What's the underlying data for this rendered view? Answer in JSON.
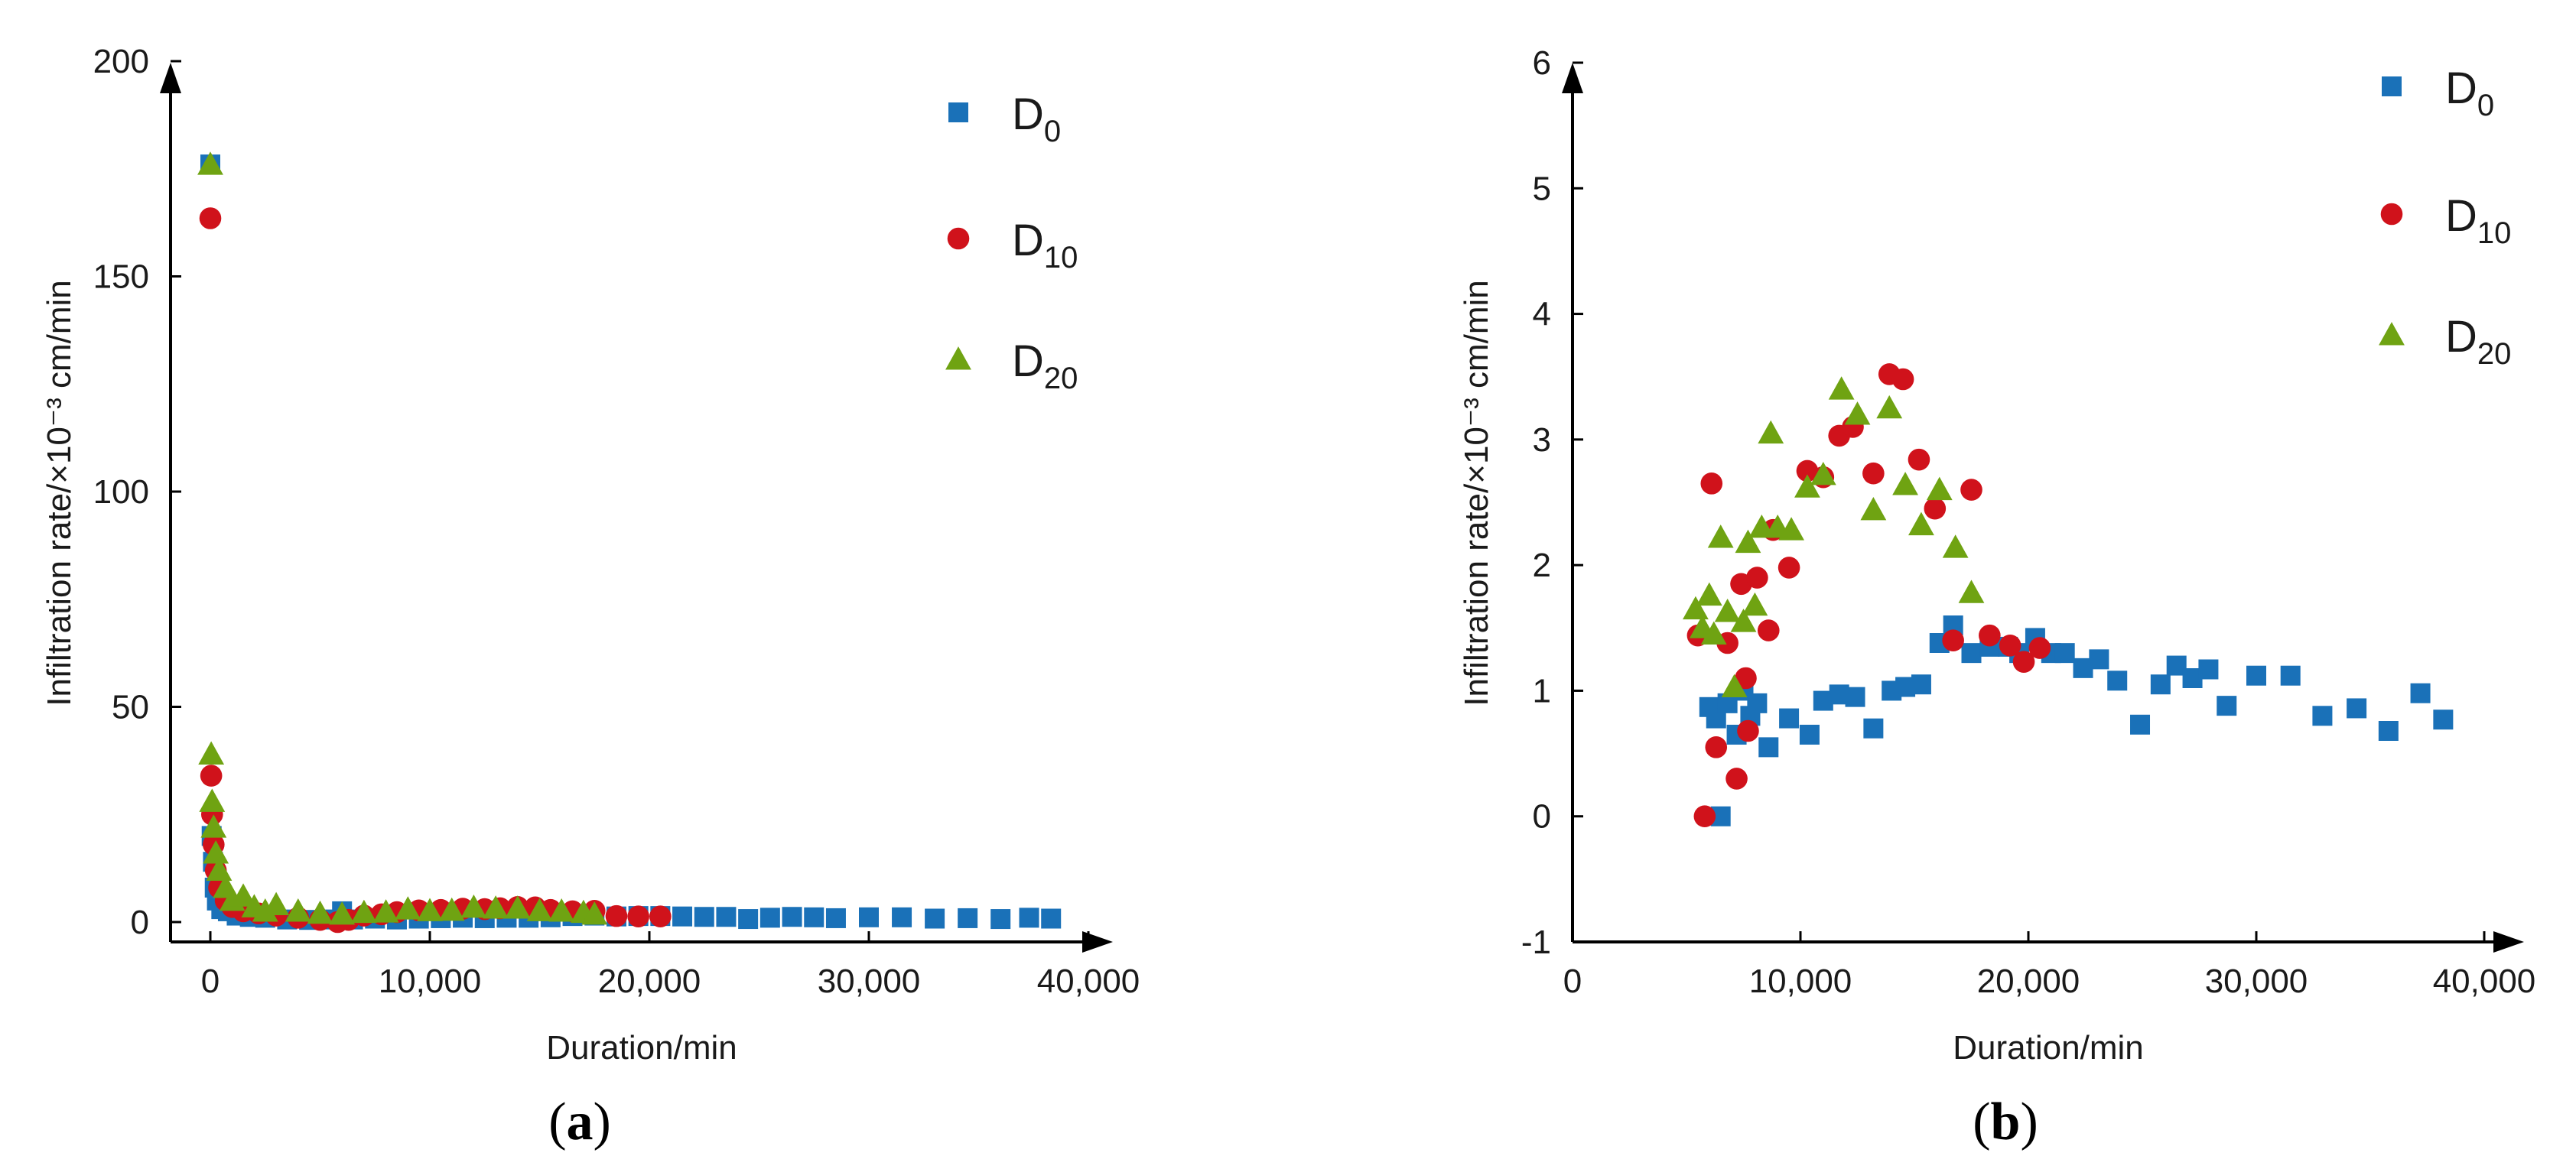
{
  "chart_data": [
    {
      "type": "scatter",
      "panel": "a",
      "panel_label": {
        "open": "(",
        "letter": "a",
        "close": ")"
      },
      "xlabel": "Duration/min",
      "ylabel": "Infiltration rate/×10⁻³ cm/min",
      "xlim": [
        -2000,
        41000
      ],
      "ylim": [
        -5,
        200
      ],
      "xticks": [
        0,
        10000,
        20000,
        30000,
        40000
      ],
      "xtick_labels": [
        "0",
        "10,000",
        "20,000",
        "30,000",
        "40,000"
      ],
      "yticks": [
        0,
        50,
        100,
        150,
        200
      ],
      "ytick_labels": [
        "0",
        "50",
        "100",
        "150",
        "200"
      ],
      "legend_position": "top-right",
      "series": [
        {
          "name": "D",
          "sub": "0",
          "marker": "square",
          "color": "#1a71b8",
          "x": [
            0,
            60,
            120,
            200,
            300,
            500,
            800,
            1200,
            1800,
            2500,
            3500,
            4500,
            5500,
            6000,
            6500,
            7500,
            8500,
            9500,
            10500,
            11500,
            12500,
            13500,
            14500,
            15500,
            16500,
            17500,
            18500,
            19500,
            20500,
            21500,
            22500,
            23500,
            24500,
            25500,
            26500,
            27500,
            28500,
            30000,
            31500,
            33000,
            34500,
            36000,
            37300,
            38300
          ],
          "y": [
            176,
            20,
            14,
            8,
            5,
            3,
            2.5,
            1.5,
            1.2,
            1.0,
            0.6,
            0.5,
            0.6,
            2.5,
            0.6,
            0.8,
            0.6,
            0.8,
            0.9,
            1.0,
            0.9,
            1.0,
            1.0,
            1.1,
            1.4,
            1.5,
            1.3,
            1.4,
            1.4,
            1.3,
            1.2,
            1.2,
            0.7,
            1.0,
            1.2,
            1.1,
            0.9,
            1.1,
            1.1,
            0.8,
            0.9,
            0.7,
            1.0,
            0.8
          ]
        },
        {
          "name": "D",
          "sub": "10",
          "marker": "circle",
          "color": "#d0121b",
          "x": [
            0,
            40,
            80,
            150,
            250,
            400,
            700,
            1000,
            1500,
            2200,
            3000,
            4000,
            5000,
            5800,
            6300,
            7000,
            7800,
            8500,
            9500,
            10500,
            11500,
            12500,
            13200,
            14000,
            14800,
            15500,
            16500,
            17500,
            18500,
            19500,
            20500
          ],
          "y": [
            163.5,
            34,
            25,
            18,
            12,
            8,
            5,
            3.5,
            2.5,
            2,
            1.5,
            1,
            0.5,
            0,
            0.5,
            1.5,
            1.8,
            2.3,
            2.7,
            2.8,
            3.1,
            3.0,
            3.2,
            3.5,
            3.4,
            2.8,
            2.5,
            2.6,
            1.4,
            1.3,
            1.3
          ]
        },
        {
          "name": "D",
          "sub": "20",
          "marker": "triangle",
          "color": "#6fa312",
          "x": [
            0,
            40,
            80,
            150,
            250,
            400,
            700,
            1000,
            1500,
            2000,
            2500,
            3000,
            4000,
            5000,
            6000,
            7000,
            8000,
            9000,
            10000,
            11000,
            12000,
            13000,
            14000,
            15000,
            16000,
            17000,
            17500
          ],
          "y": [
            176,
            39,
            28,
            22,
            16,
            12,
            8,
            5,
            6,
            3.5,
            2.5,
            4,
            2.5,
            2,
            1.8,
            2.2,
            2.3,
            3.0,
            2.6,
            2.7,
            3.4,
            3.2,
            3.2,
            2.6,
            2.5,
            2.2,
            1.8
          ]
        }
      ]
    },
    {
      "type": "scatter",
      "panel": "b",
      "panel_label": {
        "open": "(",
        "letter": "b",
        "close": ")"
      },
      "xlabel": "Duration/min",
      "ylabel": "Infiltration rate/×10⁻³ cm/min",
      "xlim": [
        0,
        42000
      ],
      "ylim": [
        -1,
        6
      ],
      "xticks": [
        0,
        10000,
        20000,
        30000,
        40000
      ],
      "xtick_labels": [
        "0",
        "10,000",
        "20,000",
        "30,000",
        "40,000"
      ],
      "yticks": [
        -1,
        0,
        1,
        2,
        3,
        4,
        5,
        6
      ],
      "ytick_labels": [
        "-1",
        "0",
        "1",
        "2",
        "3",
        "4",
        "5",
        "6"
      ],
      "legend_position": "top-right",
      "series": [
        {
          "name": "D",
          "sub": "0",
          "marker": "square",
          "color": "#1a71b8",
          "x": [
            6500,
            6000,
            6300,
            6800,
            7200,
            7500,
            7800,
            8100,
            8600,
            9500,
            10400,
            11000,
            11700,
            12400,
            13200,
            14000,
            14600,
            15300,
            16100,
            16700,
            17500,
            18300,
            19100,
            19600,
            20300,
            21000,
            21600,
            22400,
            23100,
            23900,
            24900,
            25800,
            26500,
            27200,
            27900,
            28700,
            30000,
            31500,
            32900,
            34400,
            35800,
            37200,
            38200
          ],
          "y": [
            0,
            0.87,
            0.78,
            0.9,
            0.65,
            1.0,
            0.8,
            0.9,
            0.55,
            0.78,
            0.65,
            0.92,
            0.97,
            0.95,
            0.7,
            1.0,
            1.03,
            1.05,
            1.38,
            1.52,
            1.3,
            1.35,
            1.35,
            1.3,
            1.42,
            1.3,
            1.3,
            1.18,
            1.25,
            1.08,
            0.73,
            1.05,
            1.2,
            1.1,
            1.17,
            0.88,
            1.12,
            1.12,
            0.8,
            0.86,
            0.68,
            0.98,
            0.77
          ]
        },
        {
          "name": "D",
          "sub": "10",
          "marker": "circle",
          "color": "#d0121b",
          "x": [
            5500,
            5800,
            6100,
            6300,
            6800,
            7200,
            7400,
            7600,
            7700,
            8100,
            8600,
            8800,
            9500,
            10300,
            11000,
            11700,
            12300,
            13200,
            13900,
            14500,
            15200,
            15900,
            16700,
            17500,
            18300,
            19200,
            19800,
            20500
          ],
          "y": [
            1.44,
            0.0,
            2.65,
            0.55,
            1.38,
            0.3,
            1.85,
            1.1,
            0.68,
            1.9,
            1.48,
            2.28,
            1.98,
            2.75,
            2.7,
            3.03,
            3.1,
            2.73,
            3.52,
            3.48,
            2.84,
            2.45,
            1.4,
            2.6,
            1.44,
            1.36,
            1.23,
            1.34
          ]
        },
        {
          "name": "D",
          "sub": "20",
          "marker": "triangle",
          "color": "#6fa312",
          "x": [
            5400,
            5700,
            6000,
            6200,
            6500,
            6800,
            7100,
            7500,
            7700,
            8000,
            8300,
            8700,
            9000,
            9600,
            10300,
            11000,
            11800,
            12500,
            13200,
            13900,
            14600,
            15300,
            16100,
            16800,
            17500
          ],
          "y": [
            1.65,
            1.5,
            1.76,
            1.45,
            2.22,
            1.63,
            1.03,
            1.55,
            2.18,
            1.68,
            2.3,
            3.05,
            2.3,
            2.28,
            2.62,
            2.72,
            3.4,
            3.2,
            2.44,
            3.25,
            2.64,
            2.32,
            2.6,
            2.14,
            1.78
          ]
        }
      ]
    }
  ]
}
